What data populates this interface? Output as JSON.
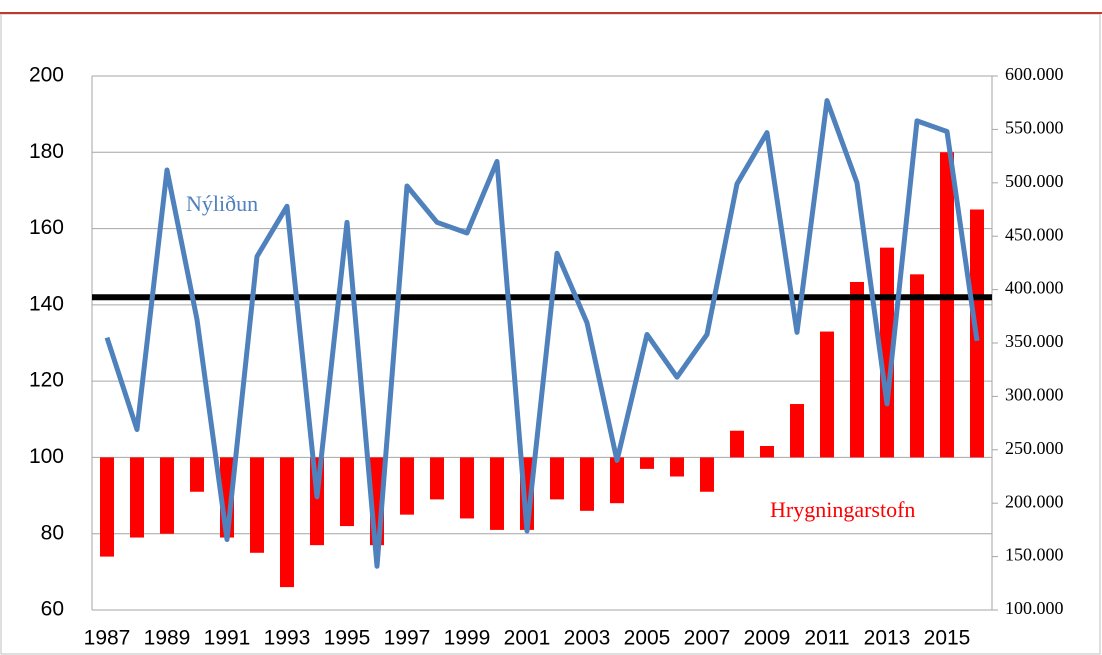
{
  "chart_data": {
    "type": "bar_line",
    "categories": [
      "1987",
      null,
      "1989",
      null,
      "1991",
      null,
      "1993",
      null,
      "1995",
      null,
      "1997",
      null,
      "1999",
      null,
      "2001",
      null,
      "2003",
      null,
      "2005",
      null,
      "2007",
      null,
      "2009",
      null,
      "2011",
      null,
      "2013",
      null,
      "2015",
      null
    ],
    "series": [
      {
        "name": "Hrygningarstofn",
        "color": "#ff0000",
        "type": "bar",
        "axis": "y",
        "values": [
          74,
          79,
          80,
          91,
          79,
          75,
          66,
          77,
          82,
          77,
          85,
          89,
          84,
          81,
          81,
          89,
          86,
          88,
          97,
          95,
          91,
          107,
          103,
          114,
          133,
          146,
          155,
          148,
          180,
          165
        ]
      },
      {
        "name": "Nýliðun",
        "color": "#4f81bd",
        "type": "line",
        "axis": "y2",
        "values": [
          355000,
          269000,
          512000,
          372000,
          166000,
          431000,
          478000,
          206000,
          463000,
          141000,
          497000,
          463000,
          453000,
          520000,
          174000,
          434000,
          369000,
          240000,
          358000,
          318000,
          358000,
          499000,
          547000,
          360000,
          577000,
          500000,
          293000,
          558000,
          548000,
          352000
        ]
      }
    ],
    "bar_baseline": 100,
    "reference_line": {
      "value": 142,
      "color": "#000000"
    },
    "ylim": [
      60,
      200
    ],
    "yticks": [
      60,
      80,
      100,
      120,
      140,
      160,
      180,
      200
    ],
    "y2lim": [
      100000,
      600000
    ],
    "y2ticks": [
      {
        "value": 100000,
        "label": "100.000"
      },
      {
        "value": 150000,
        "label": "150.000"
      },
      {
        "value": 200000,
        "label": "200.000"
      },
      {
        "value": 250000,
        "label": "250.000"
      },
      {
        "value": 300000,
        "label": "300.000"
      },
      {
        "value": 350000,
        "label": "350.000"
      },
      {
        "value": 400000,
        "label": "400.000"
      },
      {
        "value": 450000,
        "label": "450.000"
      },
      {
        "value": 500000,
        "label": "500.000"
      },
      {
        "value": 550000,
        "label": "550.000"
      },
      {
        "value": 600000,
        "label": "600.000"
      }
    ],
    "grid": true
  }
}
